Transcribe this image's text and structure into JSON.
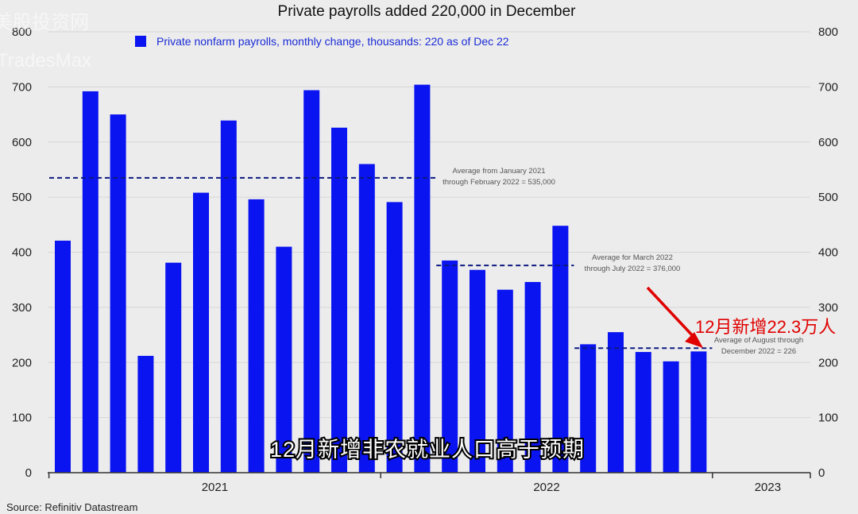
{
  "watermark": {
    "line1": "美股投资网",
    "line2": "TradesMax"
  },
  "colors": {
    "bar": "#0a14f0",
    "avg_line": "#0b1a80",
    "grid": "#d6d6d6",
    "accent_red": "#e00000"
  },
  "source": "Source: Refinitiv Datastream",
  "subtitle_cn": "12月新增非农就业人口高于预期",
  "callout_cn": "12月新增22.3万人",
  "chart_data": {
    "type": "bar",
    "title": "Private payrolls added 220,000 in December",
    "legend": "Private nonfarm payrolls, monthly change, thousands: 220 as of Dec 22",
    "legend_placement": "top-left",
    "ylim": [
      0,
      800
    ],
    "yticks": [
      0,
      100,
      200,
      300,
      400,
      500,
      600,
      700,
      800
    ],
    "secondary_y_axis": true,
    "grid": true,
    "x_labels": [
      "2021",
      "2022",
      "2023"
    ],
    "x_label_positions": [
      6,
      18,
      26
    ],
    "categories": [
      "Jan 2021",
      "Feb 2021",
      "Mar 2021",
      "Apr 2021",
      "May 2021",
      "Jun 2021",
      "Jul 2021",
      "Aug 2021",
      "Sep 2021",
      "Oct 2021",
      "Nov 2021",
      "Dec 2021",
      "Jan 2022",
      "Feb 2022",
      "Mar 2022",
      "Apr 2022",
      "May 2022",
      "Jun 2022",
      "Jul 2022",
      "Aug 2022",
      "Sep 2022",
      "Oct 2022",
      "Nov 2022",
      "Dec 2022"
    ],
    "values": [
      421,
      692,
      650,
      212,
      381,
      508,
      639,
      496,
      410,
      694,
      626,
      560,
      491,
      704,
      385,
      368,
      332,
      346,
      448,
      233,
      255,
      219,
      202,
      220
    ],
    "averages": [
      {
        "from": 0,
        "to": 13,
        "value": 535,
        "label_line1": "Average from January 2021",
        "label_line2": "through February 2022 = 535,000"
      },
      {
        "from": 14,
        "to": 18,
        "value": 376,
        "label_line1": "Average for March 2022",
        "label_line2": "through July 2022 = 376,000"
      },
      {
        "from": 19,
        "to": 23,
        "value": 226,
        "label_line1": "Average of August through",
        "label_line2": "December 2022 = 226"
      }
    ]
  }
}
